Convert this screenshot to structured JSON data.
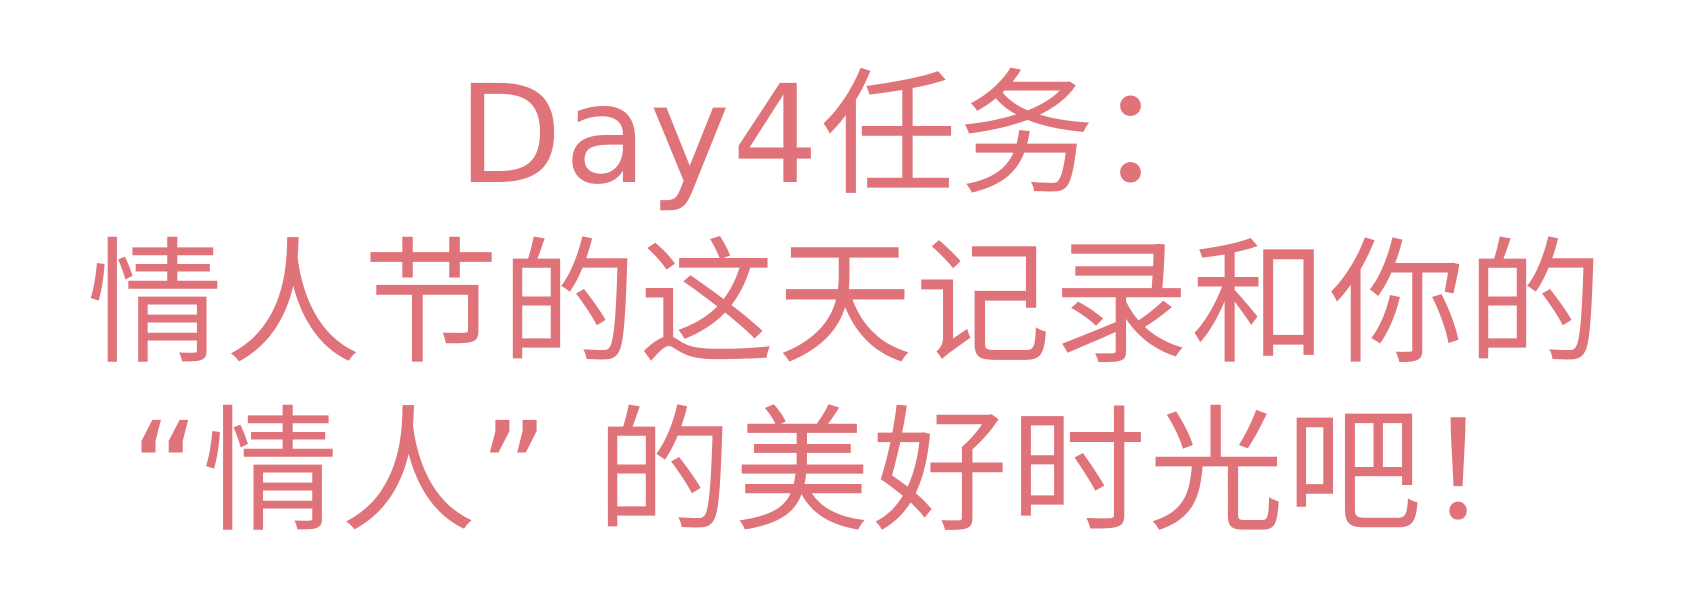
{
  "poster": {
    "text_color": "#e0727a",
    "background": "#ffffff",
    "lines": [
      "Day4任务：",
      "情人节的这天记录和你的",
      "“情人” 的美好时光吧！"
    ]
  }
}
